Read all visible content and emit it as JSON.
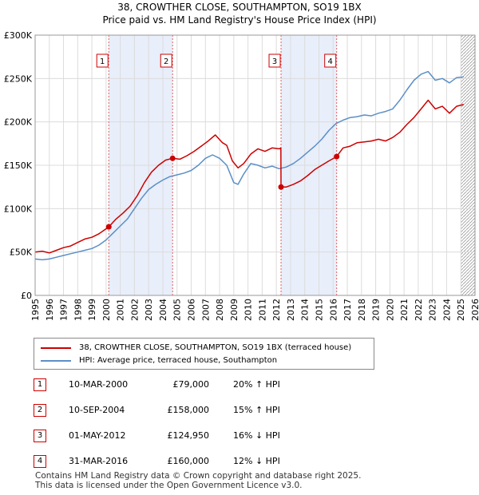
{
  "title_line1": "38, CROWTHER CLOSE, SOUTHAMPTON, SO19 1BX",
  "title_line2": "Price paid vs. HM Land Registry's House Price Index (HPI)",
  "legend": {
    "property": "38, CROWTHER CLOSE, SOUTHAMPTON, SO19 1BX (terraced house)",
    "hpi": "HPI: Average price, terraced house, Southampton"
  },
  "colors": {
    "property": "#cc0000",
    "hpi": "#5b8fc7",
    "shade": "#e8eefa",
    "marker_border": "#cc0000"
  },
  "transactions": [
    {
      "num": "1",
      "date": "10-MAR-2000",
      "price": "£79,000",
      "hpi": "20% ↑ HPI"
    },
    {
      "num": "2",
      "date": "10-SEP-2004",
      "price": "£158,000",
      "hpi": "15% ↑ HPI"
    },
    {
      "num": "3",
      "date": "01-MAY-2012",
      "price": "£124,950",
      "hpi": "16% ↓ HPI"
    },
    {
      "num": "4",
      "date": "31-MAR-2016",
      "price": "£160,000",
      "hpi": "12% ↓ HPI"
    }
  ],
  "footer_line1": "Contains HM Land Registry data © Crown copyright and database right 2025.",
  "footer_line2": "This data is licensed under the Open Government Licence v3.0.",
  "chart_data": {
    "type": "line",
    "title": "38, CROWTHER CLOSE, SOUTHAMPTON, SO19 1BX",
    "subtitle": "Price paid vs. HM Land Registry's House Price Index (HPI)",
    "xlabel": "",
    "ylabel": "",
    "xlim": [
      1995,
      2026
    ],
    "ylim": [
      0,
      300000
    ],
    "grid": true,
    "y_ticks": [
      0,
      50000,
      100000,
      150000,
      200000,
      250000,
      300000
    ],
    "y_tick_labels": [
      "£0",
      "£50K",
      "£100K",
      "£150K",
      "£200K",
      "£250K",
      "£300K"
    ],
    "x_ticks": [
      1995,
      1996,
      1997,
      1998,
      1999,
      2000,
      2001,
      2002,
      2003,
      2004,
      2005,
      2006,
      2007,
      2008,
      2009,
      2010,
      2011,
      2012,
      2013,
      2014,
      2015,
      2016,
      2017,
      2018,
      2019,
      2020,
      2021,
      2022,
      2023,
      2024,
      2025,
      2026
    ],
    "shaded_ranges": [
      [
        2000.19,
        2004.69
      ],
      [
        2012.33,
        2016.25
      ]
    ],
    "future_hatch_from": 2025.0,
    "series": [
      {
        "name": "38, CROWTHER CLOSE, SOUTHAMPTON, SO19 1BX (terraced house)",
        "color": "#cc0000",
        "x": [
          1995,
          1995.5,
          1996,
          1996.5,
          1997,
          1997.5,
          1998,
          1998.5,
          1999,
          1999.5,
          2000.19,
          2000.7,
          2001.2,
          2001.7,
          2002.2,
          2002.7,
          2003.2,
          2003.7,
          2004.2,
          2004.69,
          2005.2,
          2005.7,
          2006.2,
          2006.7,
          2007.2,
          2007.7,
          2008.2,
          2008.5,
          2008.9,
          2009.3,
          2009.7,
          2010.2,
          2010.7,
          2011.2,
          2011.7,
          2012.2,
          2012.32,
          2012.33,
          2012.7,
          2013.2,
          2013.7,
          2014.2,
          2014.7,
          2015.2,
          2015.7,
          2016.25,
          2016.7,
          2017.2,
          2017.7,
          2018.2,
          2018.7,
          2019.2,
          2019.7,
          2020.2,
          2020.7,
          2021.2,
          2021.7,
          2022.2,
          2022.7,
          2023.2,
          2023.7,
          2024.2,
          2024.7,
          2025.2
        ],
        "y": [
          50000,
          51000,
          49000,
          52000,
          55000,
          57000,
          61000,
          65000,
          67000,
          71000,
          79000,
          88000,
          95000,
          103000,
          115000,
          130000,
          142000,
          150000,
          156000,
          158000,
          157000,
          161000,
          166000,
          172000,
          178000,
          185000,
          176000,
          173000,
          155000,
          147000,
          152000,
          163000,
          169000,
          166000,
          170000,
          169000,
          170000,
          124950,
          125000,
          128000,
          132000,
          138000,
          145000,
          150000,
          155000,
          160000,
          170000,
          172000,
          176000,
          177000,
          178000,
          180000,
          178000,
          182000,
          188000,
          197000,
          205000,
          215000,
          225000,
          215000,
          218000,
          210000,
          218000,
          220000
        ]
      },
      {
        "name": "HPI: Average price, terraced house, Southampton",
        "color": "#5b8fc7",
        "x": [
          1995,
          1995.5,
          1996,
          1996.5,
          1997,
          1997.5,
          1998,
          1998.5,
          1999,
          1999.5,
          2000,
          2000.5,
          2001,
          2001.5,
          2002,
          2002.5,
          2003,
          2003.5,
          2004,
          2004.5,
          2005,
          2005.5,
          2006,
          2006.5,
          2007,
          2007.5,
          2008,
          2008.5,
          2009,
          2009.3,
          2009.7,
          2010.2,
          2010.7,
          2011.2,
          2011.7,
          2012.2,
          2012.7,
          2013.2,
          2013.7,
          2014.2,
          2014.7,
          2015.2,
          2015.7,
          2016.2,
          2016.7,
          2017.2,
          2017.7,
          2018.2,
          2018.7,
          2019.2,
          2019.7,
          2020.2,
          2020.7,
          2021.2,
          2021.7,
          2022.2,
          2022.7,
          2023.2,
          2023.7,
          2024.2,
          2024.7,
          2025.2
        ],
        "y": [
          42000,
          41000,
          42000,
          44000,
          46000,
          48000,
          50000,
          52000,
          54000,
          58000,
          64000,
          72000,
          80000,
          88000,
          100000,
          112000,
          122000,
          128000,
          133000,
          137000,
          139000,
          141000,
          144000,
          150000,
          158000,
          162000,
          158000,
          150000,
          130000,
          128000,
          140000,
          152000,
          150000,
          147000,
          149000,
          146000,
          148000,
          152000,
          158000,
          165000,
          172000,
          180000,
          190000,
          198000,
          202000,
          205000,
          206000,
          208000,
          207000,
          210000,
          212000,
          215000,
          225000,
          237000,
          248000,
          255000,
          258000,
          248000,
          250000,
          245000,
          251000,
          252000
        ]
      }
    ],
    "sale_points": [
      {
        "label": "1",
        "x": 2000.19,
        "y": 79000
      },
      {
        "label": "2",
        "x": 2004.69,
        "y": 158000
      },
      {
        "label": "3",
        "x": 2012.33,
        "y": 124950
      },
      {
        "label": "4",
        "x": 2016.25,
        "y": 160000
      }
    ]
  }
}
